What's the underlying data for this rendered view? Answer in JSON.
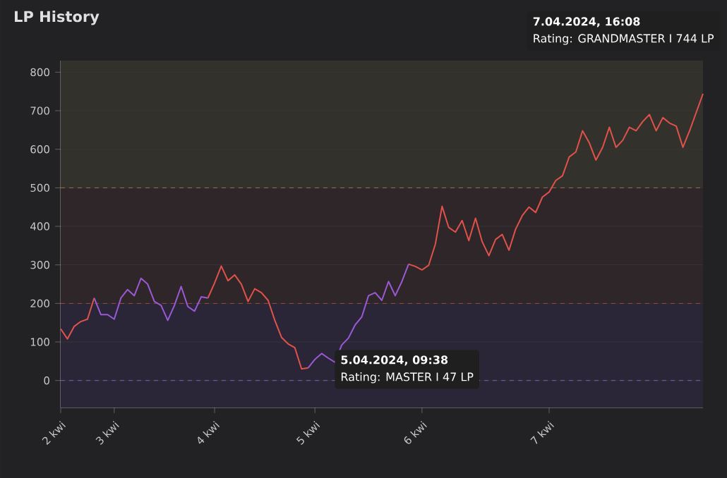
{
  "chart_data": {
    "type": "line",
    "title": "LP History",
    "categories": [
      "2 kwi",
      null,
      null,
      null,
      null,
      null,
      null,
      null,
      "3 kwi",
      null,
      null,
      null,
      null,
      null,
      null,
      null,
      null,
      null,
      null,
      null,
      null,
      null,
      null,
      "4 kwi",
      null,
      null,
      null,
      null,
      null,
      null,
      null,
      null,
      null,
      null,
      null,
      null,
      null,
      null,
      "5 kwi",
      null,
      null,
      null,
      null,
      null,
      null,
      null,
      null,
      null,
      null,
      null,
      null,
      null,
      null,
      null,
      "6 kwi",
      null,
      null,
      null,
      null,
      null,
      null,
      null,
      null,
      null,
      null,
      null,
      null,
      null,
      null,
      null,
      null,
      null,
      null,
      "7 kwi",
      null,
      null,
      null,
      null,
      null,
      null,
      null,
      null,
      null,
      null,
      null,
      null,
      null,
      null,
      null,
      null,
      null,
      null,
      null,
      null,
      null,
      null,
      null
    ],
    "series": [
      {
        "color": "#e0524a",
        "values": [
          134,
          108,
          140,
          153,
          159,
          214,
          null,
          null,
          null,
          null,
          null,
          null,
          null,
          null,
          null,
          null,
          null,
          null,
          null,
          null,
          null,
          null,
          214,
          253,
          297,
          259,
          274,
          250,
          205,
          238,
          228,
          208,
          156,
          112,
          95,
          85,
          30,
          33,
          null,
          null,
          null,
          null,
          null,
          null,
          null,
          null,
          null,
          null,
          null,
          null,
          null,
          null,
          302,
          296,
          287,
          299,
          354,
          452,
          397,
          385,
          415,
          363,
          421,
          360,
          324,
          366,
          379,
          338,
          393,
          428,
          450,
          436,
          476,
          489,
          519,
          531,
          580,
          593,
          648,
          617,
          572,
          605,
          657,
          605,
          623,
          657,
          648,
          672,
          690,
          648,
          682,
          668,
          660,
          605,
          648,
          696,
          744
        ]
      },
      {
        "color": "#9b59d6",
        "values": [
          null,
          null,
          null,
          null,
          null,
          214,
          171,
          171,
          159,
          214,
          236,
          220,
          265,
          250,
          205,
          195,
          156,
          195,
          244,
          192,
          180,
          217,
          214,
          null,
          null,
          null,
          null,
          null,
          null,
          null,
          null,
          null,
          null,
          null,
          null,
          null,
          null,
          33,
          55,
          70,
          58,
          47,
          92,
          110,
          144,
          165,
          220,
          228,
          208,
          257,
          220,
          257,
          302,
          null,
          null,
          null,
          null,
          null,
          null,
          null,
          null,
          null,
          null,
          null,
          null,
          null,
          null,
          null,
          null,
          null,
          null,
          null,
          null,
          null,
          null,
          null,
          null,
          null,
          null,
          null,
          null,
          null,
          null,
          null,
          null,
          null,
          null,
          null,
          null,
          null,
          null,
          null,
          null,
          null,
          null,
          null,
          null
        ]
      }
    ],
    "ylim": [
      -70,
      830
    ],
    "yticks": [
      0,
      100,
      200,
      300,
      400,
      500,
      600,
      700,
      800
    ],
    "grid": "y",
    "marker": "none",
    "line_style": "solid",
    "bands": [
      {
        "axis": "y",
        "from": -70,
        "to": 200,
        "color": "#2a2637"
      },
      {
        "axis": "y",
        "from": 200,
        "to": 500,
        "color": "#2e2629"
      },
      {
        "axis": "y",
        "from": 500,
        "to": 830,
        "color": "#33312b"
      }
    ],
    "ref_lines": [
      {
        "axis": "y",
        "value": 0,
        "color": "#7a5fb0",
        "line_style": "dashed"
      },
      {
        "axis": "y",
        "value": 200,
        "color": "#9a4a44",
        "line_style": "dashed"
      },
      {
        "axis": "y",
        "value": 500,
        "color": "#a0704a",
        "line_style": "dashed"
      }
    ],
    "annotations": [
      "7.04.2024, 16:08",
      "Rating: GRANDMASTER I 744 LP",
      "5.04.2024, 09:38",
      "Rating: MASTER I 47 LP"
    ]
  }
}
